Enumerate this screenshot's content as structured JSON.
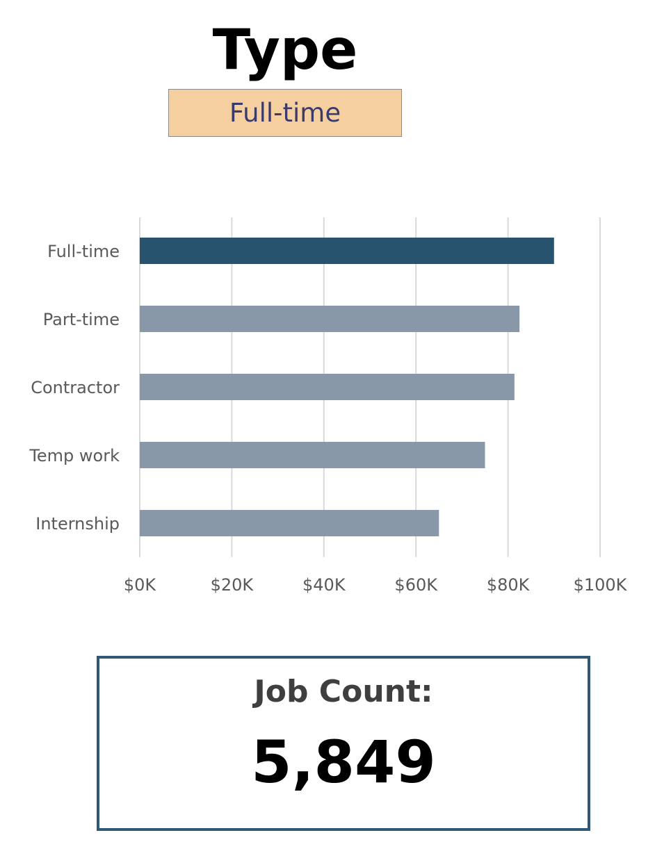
{
  "title": "Type",
  "slicer": {
    "selected": "Full-time"
  },
  "chart_data": {
    "type": "bar",
    "orientation": "horizontal",
    "categories": [
      "Full-time",
      "Part-time",
      "Contractor",
      "Temp work",
      "Internship"
    ],
    "values": [
      90000,
      82500,
      81400,
      75000,
      65000
    ],
    "highlighted": "Full-time",
    "xlim": [
      0,
      100000
    ],
    "xticks": [
      0,
      20000,
      40000,
      60000,
      80000,
      100000
    ],
    "xtick_labels": [
      "$0K",
      "$20K",
      "$40K",
      "$60K",
      "$80K",
      "$100K"
    ],
    "grid": "vertical",
    "colors": {
      "highlight": "#27536f",
      "default": "#8898a8",
      "gridline": "#d9d9d9",
      "label": "#595959"
    }
  },
  "kpi": {
    "label": "Job Count:",
    "value": "5,849"
  }
}
